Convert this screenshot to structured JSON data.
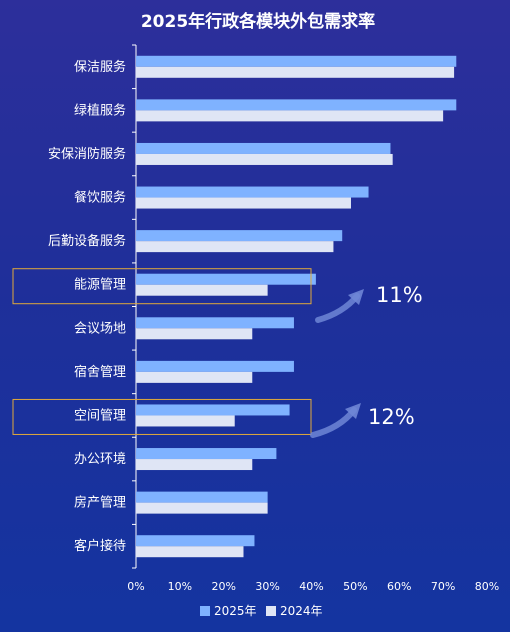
{
  "chart_data": {
    "type": "bar",
    "orientation": "horizontal",
    "title": "2025年行政各模块外包需求率",
    "categories": [
      "保洁服务",
      "绿植服务",
      "安保消防服务",
      "餐饮服务",
      "后勤设备服务",
      "能源管理",
      "会议场地",
      "宿舍管理",
      "空间管理",
      "办公环境",
      "房产管理",
      "客户接待"
    ],
    "series": [
      {
        "name": "2025年",
        "color": "#7fb2ff",
        "values": [
          73,
          73,
          58,
          53,
          47,
          41,
          36,
          36,
          35,
          32,
          30,
          27
        ]
      },
      {
        "name": "2024年",
        "color": "#dfe5f5",
        "values": [
          72.5,
          70,
          58.5,
          49,
          45,
          30,
          26.5,
          26.5,
          22.5,
          26.5,
          30,
          24.5
        ]
      }
    ],
    "xlim": [
      0,
      80
    ],
    "xticks": [
      "0%",
      "10%",
      "20%",
      "30%",
      "40%",
      "50%",
      "60%",
      "70%",
      "80%"
    ],
    "grid": false,
    "legend_position": "bottom-center",
    "annotations": [
      {
        "category": "能源管理",
        "label": "11%",
        "highlight_color": "#e0a93a"
      },
      {
        "category": "空间管理",
        "label": "12%",
        "highlight_color": "#e0a93a"
      }
    ]
  }
}
